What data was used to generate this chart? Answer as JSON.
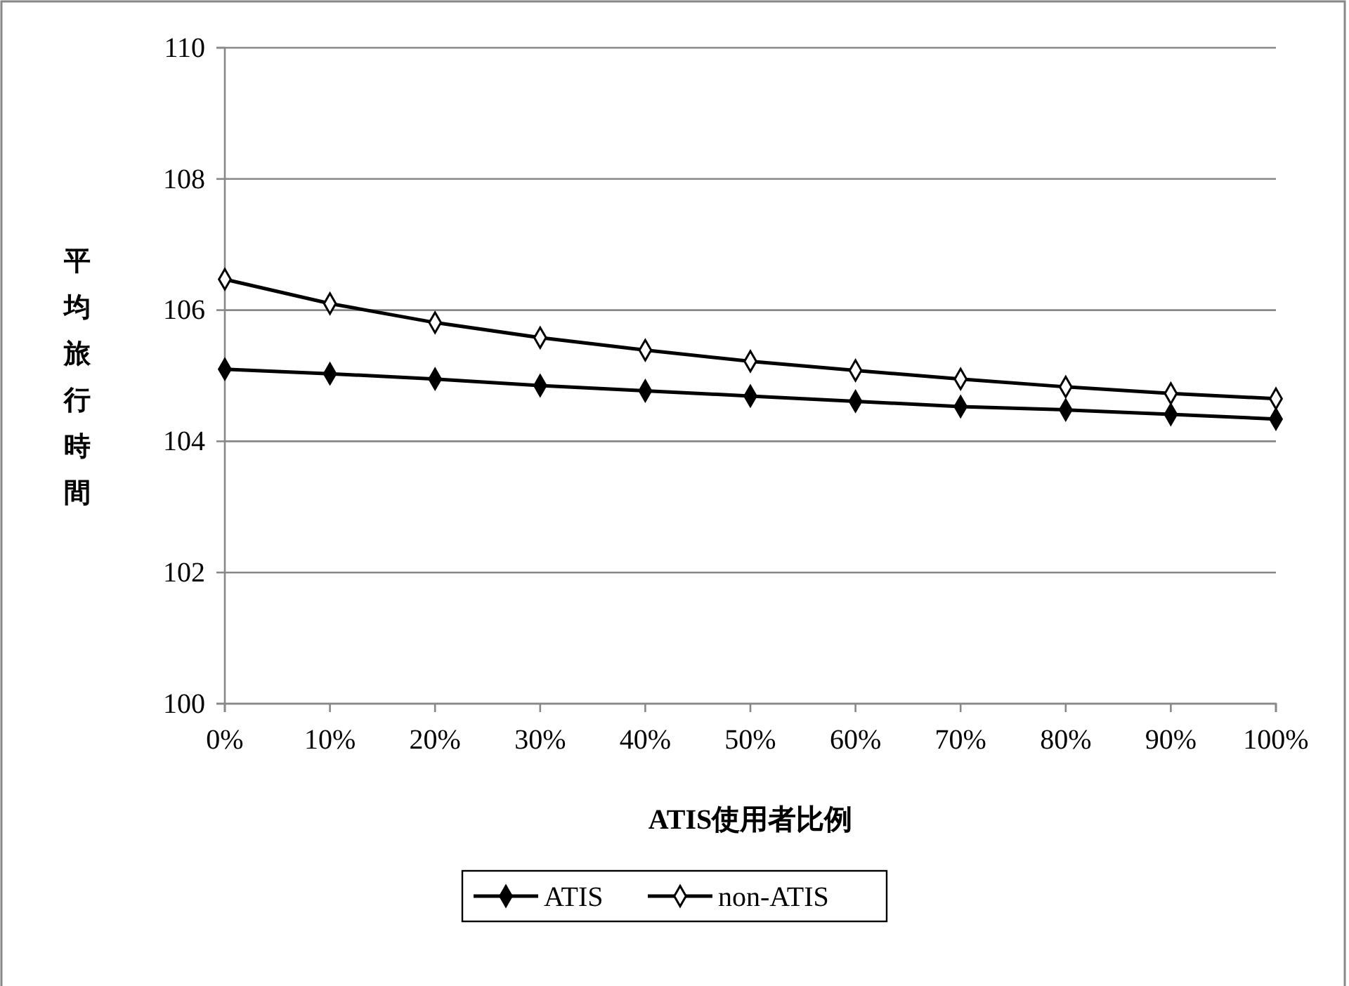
{
  "chart_data": {
    "type": "line",
    "xlabel": "ATIS使用者比例",
    "ylabel": "平均旅行時間",
    "categories": [
      "0%",
      "10%",
      "20%",
      "30%",
      "40%",
      "50%",
      "60%",
      "70%",
      "80%",
      "90%",
      "100%"
    ],
    "series": [
      {
        "name": "ATIS",
        "color": "#000000",
        "marker": "diamond",
        "values": [
          105.1,
          105.03,
          104.95,
          104.85,
          104.77,
          104.69,
          104.61,
          104.53,
          104.48,
          104.41,
          104.34
        ]
      },
      {
        "name": "non-ATIS",
        "color": "#000000",
        "marker": "diamond",
        "values": [
          106.47,
          106.1,
          105.81,
          105.58,
          105.39,
          105.22,
          105.08,
          104.95,
          104.83,
          104.73,
          104.65
        ]
      }
    ],
    "ylim": [
      100,
      110
    ],
    "yticks": [
      100,
      102,
      104,
      106,
      108,
      110
    ],
    "grid": "y",
    "legend": "bottom",
    "line_style": "solid"
  }
}
